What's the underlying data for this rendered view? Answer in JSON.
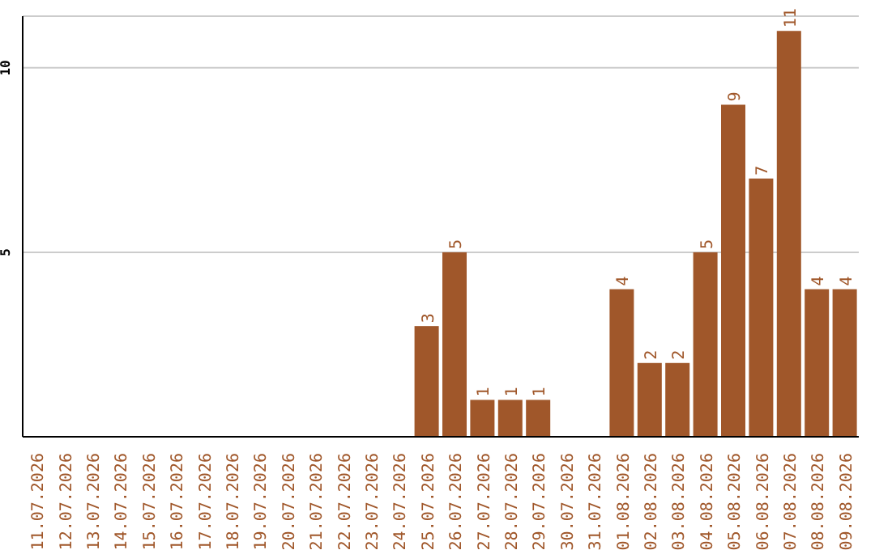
{
  "chart_data": {
    "type": "bar",
    "categories": [
      "11.07.2026",
      "12.07.2026",
      "13.07.2026",
      "14.07.2026",
      "15.07.2026",
      "16.07.2026",
      "17.07.2026",
      "18.07.2026",
      "19.07.2026",
      "20.07.2026",
      "21.07.2026",
      "22.07.2026",
      "23.07.2026",
      "24.07.2026",
      "25.07.2026",
      "26.07.2026",
      "27.07.2026",
      "28.07.2026",
      "29.07.2026",
      "30.07.2026",
      "31.07.2026",
      "01.08.2026",
      "02.08.2026",
      "03.08.2026",
      "04.08.2026",
      "05.08.2026",
      "06.08.2026",
      "07.08.2026",
      "08.08.2026",
      "09.08.2026"
    ],
    "values": [
      0,
      0,
      0,
      0,
      0,
      0,
      0,
      0,
      0,
      0,
      0,
      0,
      0,
      0,
      3,
      5,
      1,
      1,
      1,
      0,
      0,
      4,
      2,
      2,
      5,
      9,
      7,
      11,
      4,
      4
    ],
    "value_labels": [
      null,
      null,
      null,
      null,
      null,
      null,
      null,
      null,
      null,
      null,
      null,
      null,
      null,
      null,
      "3",
      "5",
      "1",
      "1",
      "1",
      null,
      null,
      "4",
      "2",
      "2",
      "5",
      "9",
      "7",
      "11",
      "4",
      "4"
    ],
    "color": "#a0572a",
    "ylim": [
      0,
      11.4
    ],
    "yticks": [
      5,
      10
    ],
    "grid": "y",
    "legend": false
  }
}
